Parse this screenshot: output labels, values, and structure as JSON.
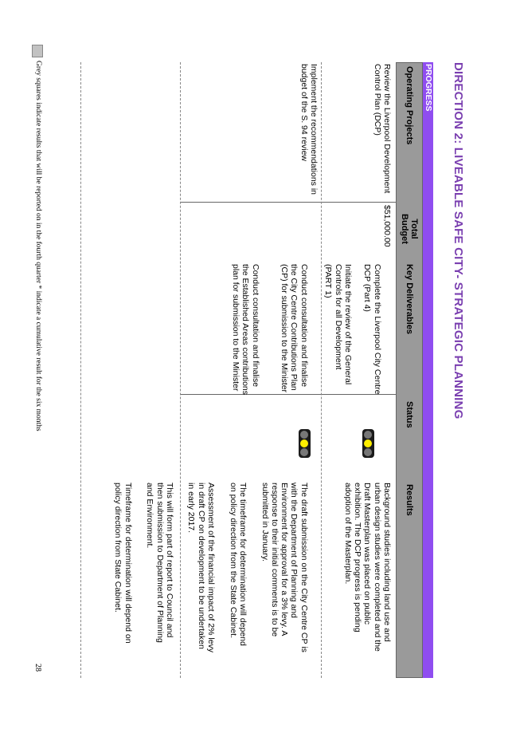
{
  "header": {
    "title": "DIRECTION 2: LIVEABLE SAFE CITY- STRATEGIC PLANNING",
    "section": "PROGRESS"
  },
  "table": {
    "columns": [
      "Operating Projects",
      "Total\nBudget",
      "Key Deliverables",
      "Status",
      "Results"
    ],
    "rows": [
      {
        "project": "Review the Liverpool Development Control Plan (DCP)",
        "budget": "$51,000.00",
        "deliverables": [
          "Complete the Liverpool City Centre DCP (Part 4)",
          "Initiate the review of the General Controls for all Development (PART 1)"
        ],
        "status_lamp": "amber",
        "results": "Background studies including land use and urban design studies were completed and the Draft Masterplan was placed on public exhibition. The DCP progress is pending adoption of the Masterplan."
      },
      {
        "project": "Implement the recommendations in budget of the S. 94 review",
        "budget": "",
        "deliverables": [
          "Conduct consultation and finalise the City Centre Contributions Plan (CP) for submission to the Minister",
          "Conduct consultation and finalise the Established Areas contributions plan for submission to the Minister"
        ],
        "status_lamp": "amber",
        "results": [
          "The draft submission on the City Centre CP is with the Department of Planning and Environment for approval for a 3% levy. A response to their initial comments is to be submitted in January.",
          "The timeframe for determination will depend on policy direction from the State Cabinet.",
          "Assessment of the financial impact of 2% levy in draft CP on development to be undertaken in early 2017.",
          "This will form part of report to Council and then submission to Department of Planning and Environment.",
          "Timeframe for determination will depend on policy direction from State Cabinet."
        ]
      }
    ]
  },
  "footer": {
    "legend": "Grey squares indicate results that will be reported on in the fourth quarter     * indicate a cumulative result for the six months",
    "page_number": "28"
  },
  "colors": {
    "title": "#7a3fb0",
    "band": "#8f4df0",
    "header": "#9a9a9a",
    "lamp_on": "#ffef00"
  }
}
